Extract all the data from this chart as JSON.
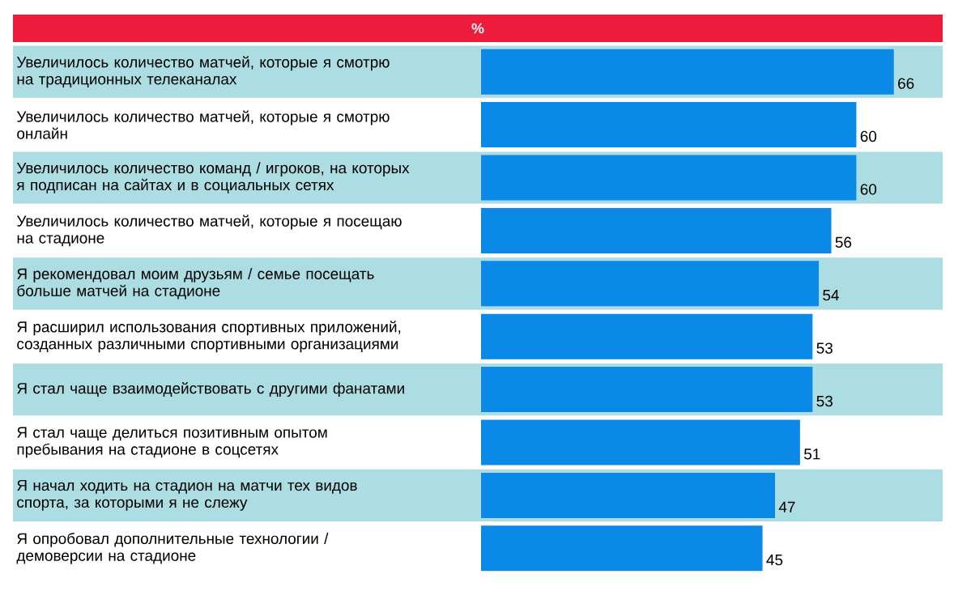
{
  "chart_data": {
    "type": "bar",
    "orientation": "horizontal",
    "title": "%",
    "categories": [
      "Увеличилось количество матчей, которые я смотрю на традиционных телеканалах",
      "Увеличилось количество матчей, которые я смотрю онлайн",
      "Увеличилось количество команд / игроков, на которых я подписан на сайтах и в социальных сетях",
      "Увеличилось количество матчей, которые я посещаю на стадионе",
      "Я рекомендовал моим друзьям / семье посещать больше матчей на стадионе",
      "Я расширил использования спортивных приложений, созданных различными спортивными организациями",
      "Я стал чаще взаимодействовать с другими фанатами",
      "Я стал чаще делиться позитивным опытом пребывания на стадионе в соцсетях",
      "Я начал ходить на стадион на матчи тех видов спорта, за которыми я не слежу",
      "Я опробовал дополнительные технологии / демоверсии на стадионе"
    ],
    "values": [
      66,
      60,
      60,
      56,
      54,
      53,
      53,
      51,
      47,
      45
    ],
    "color": "#0a8ae6",
    "data_labels": true
  }
}
